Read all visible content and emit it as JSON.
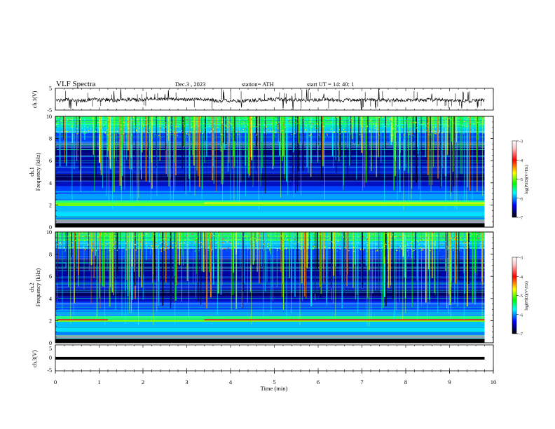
{
  "header": {
    "title": "VLF  Spectra",
    "date": "Dec.3  , 2023",
    "station": "station= ATH",
    "start_ut": "start  UT  =    14: 40: 1"
  },
  "chart_data": {
    "type": "heatmap",
    "x_axis": {
      "label": "Time  (min)",
      "range": [
        0,
        10
      ],
      "ticks": [
        0,
        1,
        2,
        3,
        4,
        5,
        6,
        7,
        8,
        9,
        10
      ],
      "tick_labels": [
        "0",
        "1",
        "2",
        "3",
        "4",
        "5",
        "6",
        "7",
        "8",
        "9",
        "10"
      ],
      "data_end": 9.8
    },
    "panels": [
      {
        "id": "ch1-waveform",
        "kind": "line",
        "ylabel": "ch.1(V)",
        "ylim": [
          -5,
          5
        ],
        "tick_labels": [
          "5",
          "-5"
        ],
        "baseline": -0.3
      },
      {
        "id": "ch1-spectrogram",
        "kind": "spectrogram",
        "ylabel": [
          "ch.1",
          "Frequency  (kHz)"
        ],
        "ylim": [
          0,
          10
        ],
        "yticks": [
          0,
          2,
          4,
          6,
          8,
          10
        ],
        "tick_labels": [
          "0",
          "2",
          "4",
          "6",
          "8",
          "10"
        ],
        "tone_bands_khz": [
          1.9,
          2.2
        ],
        "tone_step_min": 3.4
      },
      {
        "id": "ch2-spectrogram",
        "kind": "spectrogram",
        "ylabel": [
          "ch.2",
          "Frequency  (kHz)"
        ],
        "ylim": [
          0,
          10
        ],
        "yticks": [
          0,
          2,
          4,
          6,
          8,
          10
        ],
        "tick_labels": [
          "0",
          "2",
          "4",
          "6",
          "8",
          "10"
        ],
        "tone_bands_khz": [
          1.9,
          2.1
        ],
        "tone_step_min": 3.4
      },
      {
        "id": "ch3-waveform",
        "kind": "line",
        "ylabel": "ch.3(V)",
        "ylim": [
          -5,
          5
        ],
        "tick_labels": [
          "5",
          "0",
          "-5"
        ],
        "baseline": 0
      }
    ],
    "colorbars": [
      {
        "label": "log(PSD)(V²/Hz)",
        "range": [
          -7,
          -3
        ],
        "ticks": [
          -3,
          -4,
          -5,
          -6,
          -7
        ],
        "tick_labels": [
          "-3",
          "-4",
          "-5",
          "-6",
          "-7"
        ]
      },
      {
        "label": "log(PSD)(V²/Hz)",
        "range": [
          -7,
          -3
        ],
        "ticks": [
          -3,
          -4,
          -5,
          -6,
          -7
        ],
        "tick_labels": [
          "-3",
          "-4",
          "-5",
          "-6",
          "-7"
        ]
      }
    ],
    "colormap": [
      "#ffffff",
      "#ff0000",
      "#ffff00",
      "#00ff00",
      "#00ffff",
      "#0000ff",
      "#000000"
    ]
  }
}
